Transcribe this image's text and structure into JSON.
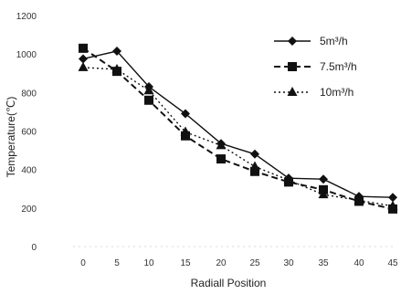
{
  "chart_data": {
    "type": "line",
    "title": "",
    "xlabel": "Radiall Position",
    "ylabel": "Temperature(℃)",
    "x": [
      0,
      5,
      10,
      15,
      20,
      25,
      30,
      35,
      40,
      45
    ],
    "xticks": [
      "0",
      "5",
      "10",
      "15",
      "20",
      "25",
      "30",
      "35",
      "40",
      "45"
    ],
    "yticks": [
      "0",
      "200",
      "400",
      "600",
      "800",
      "1000",
      "1200"
    ],
    "ylim": [
      0,
      1200
    ],
    "grid": false,
    "legend": "top-right",
    "series": [
      {
        "name": "5m³/h",
        "marker": "diamond",
        "line": "solid",
        "color": "#111111",
        "values": [
          975,
          1015,
          830,
          690,
          535,
          480,
          355,
          350,
          260,
          255
        ]
      },
      {
        "name": "7.5m³/h",
        "marker": "square",
        "line": "dashed",
        "color": "#111111",
        "values": [
          1030,
          910,
          760,
          575,
          455,
          390,
          335,
          295,
          235,
          195
        ]
      },
      {
        "name": "10m³/h",
        "marker": "triangle",
        "line": "dotted",
        "color": "#111111",
        "values": [
          930,
          920,
          810,
          595,
          525,
          415,
          345,
          270,
          240,
          210
        ]
      }
    ]
  }
}
